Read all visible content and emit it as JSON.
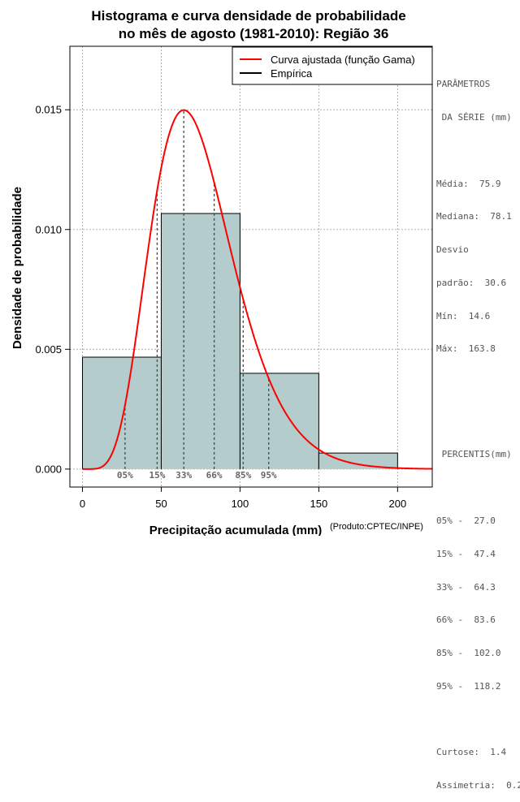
{
  "chart_data": {
    "type": "bar",
    "title_lines": [
      "Histograma e curva densidade de probabilidade",
      "no mês de agosto (1981-2010): Região 36"
    ],
    "xlabel": "Precipitação acumulada (mm)",
    "ylabel": "Densidade de probabilidade",
    "credit": "(Produto:CPTEC/INPE)",
    "xlim": [
      -8,
      222
    ],
    "ylim": [
      -0.00075,
      0.01765
    ],
    "x_ticks": [
      0,
      50,
      100,
      150,
      200
    ],
    "x_tick_labels": [
      "0",
      "50",
      "100",
      "150",
      "200"
    ],
    "y_ticks": [
      0.0,
      0.005,
      0.01,
      0.015
    ],
    "y_tick_labels": [
      "0.000",
      "0.005",
      "0.010",
      "0.015"
    ],
    "grid": true,
    "bins": [
      {
        "from": 0,
        "to": 50,
        "density": 0.00467
      },
      {
        "from": 50,
        "to": 100,
        "density": 0.01067
      },
      {
        "from": 100,
        "to": 150,
        "density": 0.004
      },
      {
        "from": 150,
        "to": 200,
        "density": 0.00067
      }
    ],
    "bar_color": "#b4cccc",
    "curve_color": "#ff0000",
    "gamma_fit": {
      "shape": 7.0,
      "rate": 0.0933
    },
    "percentiles": [
      {
        "label": "05%",
        "value": 27.0
      },
      {
        "label": "15%",
        "value": 47.4
      },
      {
        "label": "33%",
        "value": 64.3
      },
      {
        "label": "66%",
        "value": 83.6
      },
      {
        "label": "85%",
        "value": 102.0
      },
      {
        "label": "95%",
        "value": 118.2
      }
    ],
    "legend": {
      "position": "top-right",
      "entries": [
        {
          "label": "Curva ajustada (função Gama)",
          "color": "#ff0000"
        },
        {
          "label": "Empírica",
          "color": "#000000"
        }
      ]
    }
  },
  "stats_panel": {
    "params_title": [
      "PARÂMETROS",
      " DA SÉRIE (mm)"
    ],
    "params": [
      "Média:  75.9",
      "Mediana:  78.1",
      "Desvio",
      "padrão:  30.6",
      "Mín:  14.6",
      "Máx:  163.8"
    ],
    "percentis_title": " PERCENTIS(mm)",
    "percentis": [
      "05% -  27.0",
      "15% -  47.4",
      "33% -  64.3",
      "66% -  83.6",
      "85% -  102.0",
      "95% -  118.2"
    ],
    "extra": [
      "Curtose:  1.4",
      "Assimetria:  0.2"
    ]
  }
}
